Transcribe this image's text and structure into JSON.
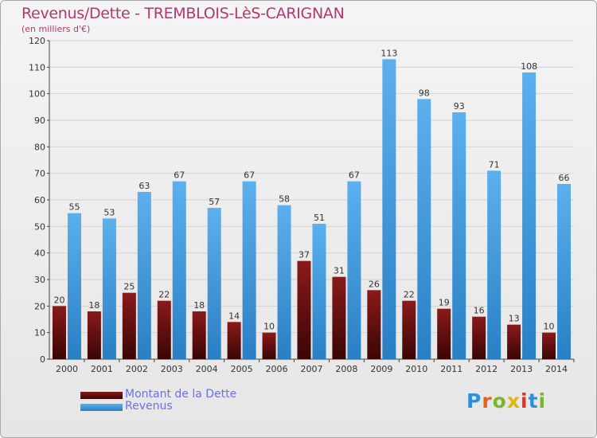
{
  "header": {
    "title": "Revenus/Dette - TREMBLOIS-LèS-CARIGNAN",
    "subtitle": "(en milliers d'€)"
  },
  "legend": {
    "debt_label": "Montant de la Dette",
    "revenue_label": "Revenus"
  },
  "logo": {
    "text": "Proxiti"
  },
  "colors": {
    "debt": "#6b0d0d",
    "revenue": "#3a97dc",
    "title": "#b03a6b",
    "legend_text": "#6d6df0"
  },
  "chart_data": {
    "type": "bar",
    "categories": [
      "2000",
      "2001",
      "2002",
      "2003",
      "2004",
      "2005",
      "2006",
      "2007",
      "2008",
      "2009",
      "2010",
      "2011",
      "2012",
      "2013",
      "2014"
    ],
    "series": [
      {
        "name": "Montant de la Dette",
        "values": [
          20,
          18,
          25,
          22,
          18,
          14,
          10,
          37,
          31,
          26,
          22,
          19,
          16,
          13,
          10
        ]
      },
      {
        "name": "Revenus",
        "values": [
          55,
          53,
          63,
          67,
          57,
          67,
          58,
          51,
          67,
          113,
          98,
          93,
          71,
          108,
          66
        ]
      }
    ],
    "ylim": [
      0,
      120
    ],
    "yticks": [
      0,
      10,
      20,
      30,
      40,
      50,
      60,
      70,
      80,
      90,
      100,
      110,
      120
    ],
    "grid": true,
    "legend_position": "bottom-left"
  }
}
